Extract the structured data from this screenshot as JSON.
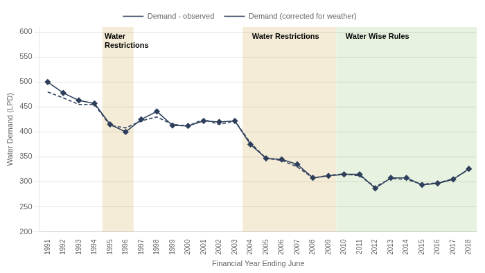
{
  "chart_data": {
    "type": "line",
    "xlabel": "Financial Year Ending June",
    "ylabel": "Water Demand (LPD)",
    "x": [
      1991,
      1992,
      1993,
      1994,
      1995,
      1996,
      1997,
      1998,
      1999,
      2000,
      2001,
      2002,
      2003,
      2004,
      2005,
      2006,
      2007,
      2008,
      2009,
      2010,
      2011,
      2012,
      2013,
      2014,
      2015,
      2016,
      2017,
      2018
    ],
    "series": [
      {
        "name": "Demand (corrected for weather)",
        "color": "#2e3f5c",
        "line_style": "dashed",
        "marker": "none",
        "values": [
          480,
          468,
          455,
          455,
          413,
          408,
          422,
          430,
          415,
          412,
          425,
          415,
          422,
          378,
          347,
          343,
          330,
          308,
          313,
          316,
          312,
          290,
          307,
          305,
          295,
          298,
          306,
          325
        ]
      },
      {
        "name": "Demand - observed",
        "color": "#2e3f5c",
        "line_style": "solid",
        "marker": "diamond",
        "values": [
          500,
          478,
          463,
          457,
          415,
          400,
          425,
          441,
          413,
          412,
          422,
          420,
          422,
          375,
          347,
          345,
          335,
          308,
          312,
          315,
          315,
          287,
          308,
          308,
          294,
          297,
          305,
          326
        ]
      }
    ],
    "xlim": [
      1990.5,
      2018.5
    ],
    "xticks": [
      1991,
      1992,
      1993,
      1994,
      1995,
      1996,
      1997,
      1998,
      1999,
      2000,
      2001,
      2002,
      2003,
      2004,
      2005,
      2006,
      2007,
      2008,
      2009,
      2010,
      2011,
      2012,
      2013,
      2014,
      2015,
      2016,
      2017,
      2018
    ],
    "ylim": [
      200,
      610
    ],
    "yticks": [
      200,
      250,
      300,
      350,
      400,
      450,
      500,
      550,
      600
    ],
    "grid": "y",
    "legend": "top",
    "shaded_regions": [
      {
        "start": 1994.5,
        "end": 1996.5,
        "color": "#f5ecd7"
      },
      {
        "start": 2003.5,
        "end": 2009.5,
        "color": "#f5ecd7"
      },
      {
        "start": 2009.5,
        "end": 2018.5,
        "color": "#e8f2e0"
      }
    ],
    "annotations": [
      {
        "text": "Water\nRestrictions",
        "x": 1994.65,
        "y": 598
      },
      {
        "text": "Water Restrictions",
        "x": 2004.1,
        "y": 598
      },
      {
        "text": "Water Wise Rules",
        "x": 2010.1,
        "y": 598
      }
    ]
  }
}
